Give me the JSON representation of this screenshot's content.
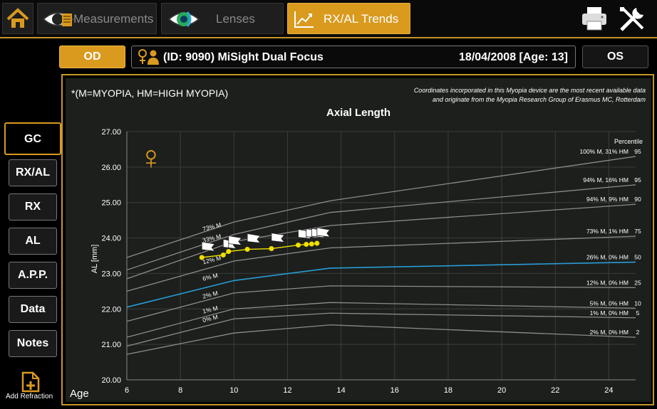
{
  "tabs": [
    {
      "label": "Measurements",
      "icon": "eye-measure-icon"
    },
    {
      "label": "Lenses",
      "icon": "eye-lens-icon"
    },
    {
      "label": "RX/AL Trends",
      "icon": "trend-chart-icon"
    }
  ],
  "header": {
    "od_label": "OD",
    "os_label": "OS",
    "patient_text": "(ID: 9090) MiSight Dual Focus",
    "patient_date": "18/04/2008 [Age: 13]"
  },
  "sidebar": {
    "items": [
      {
        "label": "GC"
      },
      {
        "label": "RX/AL"
      },
      {
        "label": "RX"
      },
      {
        "label": "AL"
      },
      {
        "label": "A.P.P."
      },
      {
        "label": "Data"
      },
      {
        "label": "Notes"
      }
    ],
    "add_label": "Add Refraction"
  },
  "chart_meta": {
    "legend_note": "*(M=MYOPIA, HM=HIGH MYOPIA)",
    "credit_line1": "Coordinates incorporated in this Myopia device are the most recent available data",
    "credit_line2": "and  originate from the Myopia Research Group of Erasmus MC, Rotterdam",
    "percentile_header": "Percentile",
    "gender_symbol": "♀",
    "accent": "#d99a1e",
    "highlight_curve": "#2a9bd6",
    "patient_series": "#f0e000"
  },
  "chart_data": {
    "type": "line",
    "title": "Axial Length",
    "xlabel": "Age",
    "ylabel": "AL [mm]",
    "xlim": [
      6,
      25
    ],
    "ylim": [
      20.0,
      27.0
    ],
    "xticks": [
      6,
      8,
      10,
      12,
      14,
      16,
      18,
      20,
      22,
      24
    ],
    "yticks": [
      "20.00",
      "21.00",
      "22.00",
      "23.00",
      "24.00",
      "25.00",
      "26.00",
      "27.00"
    ],
    "grid": true,
    "x": [
      6,
      10,
      13.6,
      25
    ],
    "series": [
      {
        "name": "100% M, 31% HM",
        "percentile": "95",
        "values": [
          23.45,
          24.45,
          25.05,
          26.3
        ]
      },
      {
        "name": "94% M, 16% HM",
        "percentile": "95",
        "values": [
          23.1,
          24.1,
          24.72,
          25.5
        ]
      },
      {
        "name": "94% M, 9% HM",
        "percentile": "90",
        "values": [
          22.85,
          23.9,
          24.35,
          24.95
        ]
      },
      {
        "name": "73% M, 1% HM",
        "percentile": "75",
        "values": [
          22.5,
          23.35,
          23.72,
          24.05
        ]
      },
      {
        "name": "26% M, 0% HM",
        "percentile": "50",
        "values": [
          22.05,
          22.8,
          23.15,
          23.32
        ]
      },
      {
        "name": "12% M, 0% HM",
        "percentile": "25",
        "values": [
          21.65,
          22.45,
          22.65,
          22.6
        ]
      },
      {
        "name": "5% M, 0% HM",
        "percentile": "10",
        "values": [
          21.2,
          22.0,
          22.18,
          22.02
        ]
      },
      {
        "name": "1% M, 0% HM",
        "percentile": "5",
        "values": [
          20.95,
          21.72,
          21.88,
          21.75
        ]
      },
      {
        "name": "2% M, 0% HM",
        "percentile": "2",
        "values": [
          20.72,
          21.32,
          21.55,
          21.2
        ]
      }
    ],
    "left_labels": [
      {
        "label": "73% M",
        "x": 8.0,
        "y": 24.15
      },
      {
        "label": "33% M",
        "x": 8.0,
        "y": 23.83
      },
      {
        "label": "12% M",
        "x": 8.0,
        "y": 23.22
      },
      {
        "label": "6% M",
        "x": 8.0,
        "y": 22.75
      },
      {
        "label": "2% M",
        "x": 8.0,
        "y": 22.25
      },
      {
        "label": "1% M",
        "x": 8.0,
        "y": 21.83
      },
      {
        "label": "0% M",
        "x": 8.0,
        "y": 21.58
      }
    ],
    "patient": {
      "x": [
        8.8,
        9.6,
        9.8,
        10.5,
        11.4,
        12.4,
        12.7,
        12.9,
        13.1
      ],
      "y": [
        23.45,
        23.52,
        23.62,
        23.68,
        23.7,
        23.8,
        23.82,
        23.83,
        23.85
      ]
    }
  }
}
